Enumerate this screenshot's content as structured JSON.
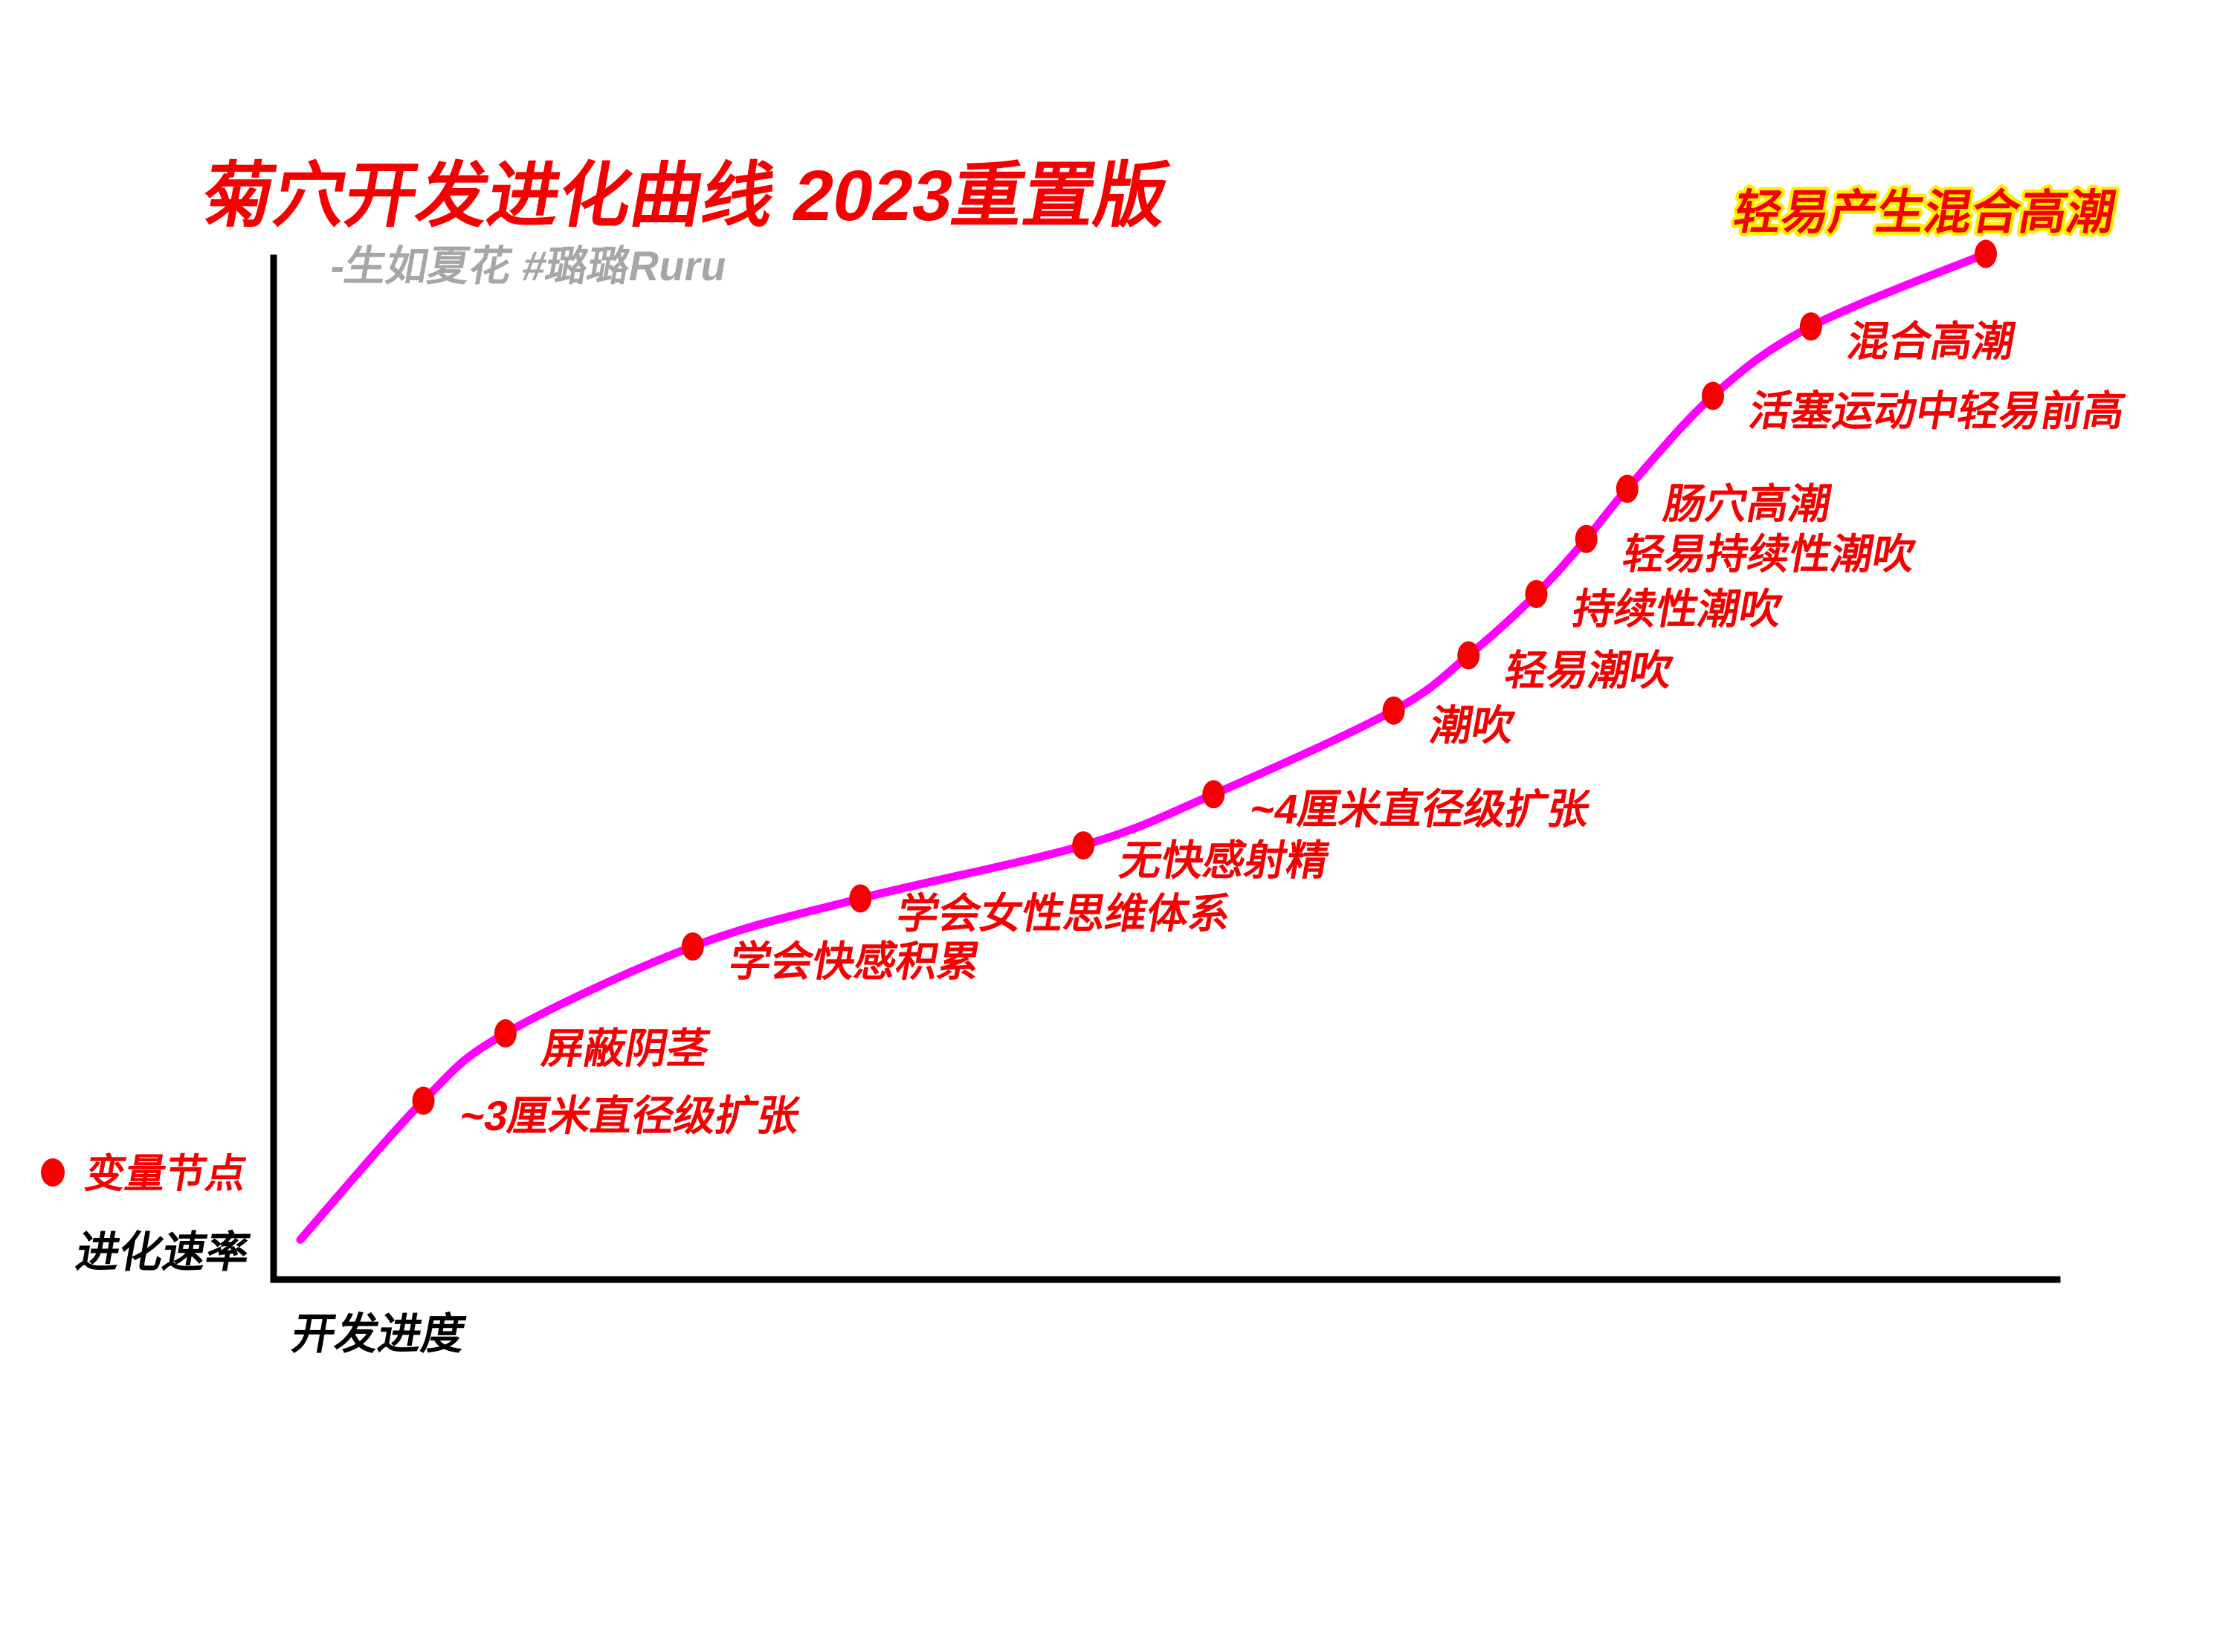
{
  "header": {
    "title": "菊穴开发进化曲线  2023重置版",
    "subtitle": "-生如夏花 #璐璐Ruru"
  },
  "legend": {
    "marker": "red-dot",
    "label": "变量节点"
  },
  "axes": {
    "y_label": "进化速率",
    "x_label": "开发进度"
  },
  "colors": {
    "red": "#f50000",
    "magenta": "#ff00ff",
    "yellow": "#ffee00",
    "gray": "#a6a6a6",
    "black": "#000000"
  },
  "chart_data": {
    "type": "line",
    "title": "菊穴开发进化曲线 2023重置版",
    "xlabel": "开发进度",
    "ylabel": "进化速率",
    "x_range": [
      0,
      1
    ],
    "y_range": [
      0,
      1
    ],
    "grid": false,
    "legend_position": "bottom-left",
    "curve_start": {
      "x": 0.015,
      "y": 0.039
    },
    "points": [
      {
        "label": "~3厘米直径级扩张",
        "x": 0.084,
        "y": 0.175
      },
      {
        "label": "屏蔽阴茎",
        "x": 0.13,
        "y": 0.241
      },
      {
        "label": "学会快感积累",
        "x": 0.235,
        "y": 0.326
      },
      {
        "label": "学会女性思维体系",
        "x": 0.329,
        "y": 0.373
      },
      {
        "label": "无快感射精",
        "x": 0.454,
        "y": 0.425
      },
      {
        "label": "~4厘米直径级扩张",
        "x": 0.527,
        "y": 0.475
      },
      {
        "label": "潮吹",
        "x": 0.628,
        "y": 0.557
      },
      {
        "label": "轻易潮吹",
        "x": 0.67,
        "y": 0.611
      },
      {
        "label": "持续性潮吹",
        "x": 0.708,
        "y": 0.671
      },
      {
        "label": "轻易持续性潮吹",
        "x": 0.736,
        "y": 0.725
      },
      {
        "label": "肠穴高潮",
        "x": 0.759,
        "y": 0.774
      },
      {
        "label": "活塞运动中轻易前高",
        "x": 0.807,
        "y": 0.865
      },
      {
        "label": "混合高潮",
        "x": 0.862,
        "y": 0.933
      },
      {
        "label": "轻易产生混合高潮",
        "x": 0.96,
        "y": 1.004,
        "highlight": true
      }
    ]
  }
}
